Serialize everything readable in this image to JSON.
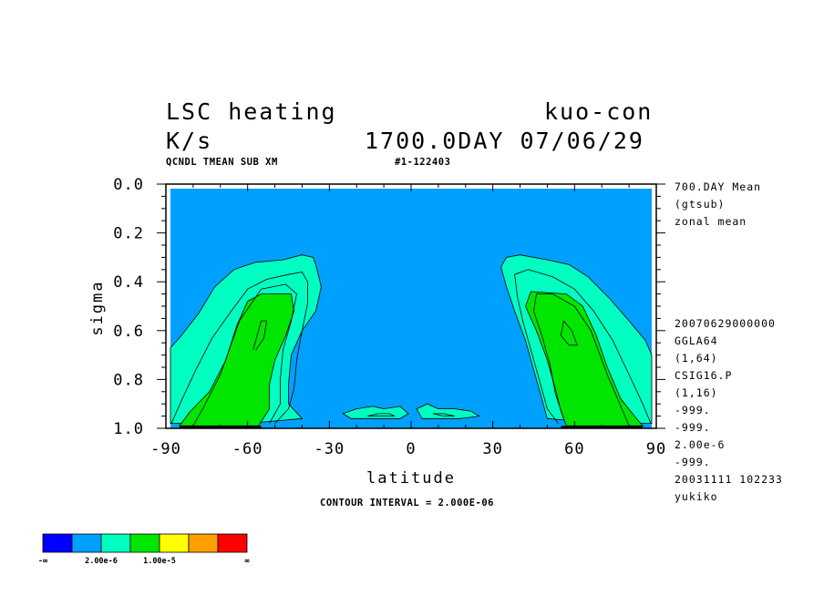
{
  "header": {
    "title_left": "LSC heating",
    "title_right": "kuo-con",
    "units": "K/s",
    "time": "1700.0DAY 07/06/29",
    "subtitle_left": "QCNDL TMEAN SUB XM",
    "subtitle_right": "#1-122403"
  },
  "side_info": {
    "lines_top": [
      "700.DAY Mean",
      "(gtsub)",
      "zonal mean"
    ],
    "lines_bottom": [
      "20070629000000",
      "GGLA64",
      "(1,64)",
      "CSIG16.P",
      "(1,16)",
      "-999.",
      "-999.",
      "2.00e-6",
      "-999.",
      "20031111 102233",
      "yukiko"
    ]
  },
  "footer": {
    "contour_interval": "CONTOUR INTERVAL = 2.000E-06"
  },
  "colorbar": {
    "colors": [
      "#0000ff",
      "#00a0ff",
      "#00ffc0",
      "#00e600",
      "#ffff00",
      "#ffa000",
      "#ff0000"
    ],
    "labels": [
      "-∞",
      "2.00e-6",
      "1.00e-5",
      "∞"
    ]
  },
  "chart_data": {
    "type": "contour",
    "xlabel": "latitude",
    "ylabel": "sigma",
    "xlim": [
      -90,
      90
    ],
    "ylim": [
      1.0,
      0.0
    ],
    "x_ticks": [
      -90,
      -60,
      -30,
      0,
      30,
      60,
      90
    ],
    "x_tick_labels": [
      "-90",
      "-60",
      "-30",
      "0",
      "30",
      "60",
      "90"
    ],
    "y_ticks": [
      0.0,
      0.2,
      0.4,
      0.6,
      0.8,
      1.0
    ],
    "y_tick_labels": [
      "0.0",
      "0.2",
      "0.4",
      "0.6",
      "0.8",
      "1.0"
    ],
    "contour_interval": 2e-06,
    "fill_colors": [
      "#00a0ff",
      "#00ffc0",
      "#00e600"
    ],
    "regions": [
      {
        "level": "2.0e-6 to 6.0e-6",
        "color": "#00ffc0",
        "points": [
          [
            -90,
            0.98
          ],
          [
            -90,
            0.67
          ],
          [
            -85,
            0.63
          ],
          [
            -78,
            0.53
          ],
          [
            -72,
            0.42
          ],
          [
            -65,
            0.35
          ],
          [
            -57,
            0.32
          ],
          [
            -47,
            0.31
          ],
          [
            -40,
            0.29
          ],
          [
            -36,
            0.3
          ],
          [
            -35,
            0.33
          ],
          [
            -33,
            0.42
          ],
          [
            -35,
            0.52
          ],
          [
            -40,
            0.6
          ],
          [
            -44,
            0.7
          ],
          [
            -45,
            0.82
          ],
          [
            -45,
            0.9
          ],
          [
            -40,
            0.96
          ],
          [
            -60,
            0.98
          ]
        ]
      },
      {
        "level": ">= 6.0e-6",
        "color": "#00e600",
        "points": [
          [
            -85,
            0.99
          ],
          [
            -81,
            0.93
          ],
          [
            -74,
            0.85
          ],
          [
            -68,
            0.72
          ],
          [
            -64,
            0.58
          ],
          [
            -60,
            0.48
          ],
          [
            -55,
            0.45
          ],
          [
            -44,
            0.45
          ],
          [
            -43,
            0.52
          ],
          [
            -46,
            0.62
          ],
          [
            -50,
            0.72
          ],
          [
            -52,
            0.82
          ],
          [
            -52,
            0.92
          ],
          [
            -56,
            0.99
          ]
        ]
      },
      {
        "level": "2.0e-6 to 6.0e-6",
        "color": "#00ffc0",
        "points": [
          [
            90,
            0.98
          ],
          [
            90,
            0.7
          ],
          [
            86,
            0.64
          ],
          [
            80,
            0.56
          ],
          [
            73,
            0.47
          ],
          [
            65,
            0.38
          ],
          [
            58,
            0.33
          ],
          [
            50,
            0.31
          ],
          [
            40,
            0.29
          ],
          [
            35,
            0.3
          ],
          [
            33,
            0.34
          ],
          [
            35,
            0.42
          ],
          [
            38,
            0.52
          ],
          [
            42,
            0.64
          ],
          [
            45,
            0.76
          ],
          [
            48,
            0.88
          ],
          [
            50,
            0.96
          ],
          [
            70,
            0.98
          ]
        ]
      },
      {
        "level": ">= 6.0e-6",
        "color": "#00e600",
        "points": [
          [
            85,
            0.99
          ],
          [
            82,
            0.95
          ],
          [
            77,
            0.88
          ],
          [
            72,
            0.75
          ],
          [
            68,
            0.62
          ],
          [
            63,
            0.5
          ],
          [
            57,
            0.45
          ],
          [
            44,
            0.44
          ],
          [
            42,
            0.5
          ],
          [
            46,
            0.6
          ],
          [
            50,
            0.72
          ],
          [
            53,
            0.84
          ],
          [
            55,
            0.93
          ],
          [
            57,
            0.99
          ]
        ]
      },
      {
        "level": "2.0e-6 to 6.0e-6",
        "color": "#00ffc0",
        "points": [
          [
            -25,
            0.94
          ],
          [
            -20,
            0.92
          ],
          [
            -14,
            0.91
          ],
          [
            -10,
            0.92
          ],
          [
            -4,
            0.91
          ],
          [
            -1,
            0.94
          ],
          [
            -4,
            0.96
          ],
          [
            -10,
            0.96
          ],
          [
            -16,
            0.96
          ],
          [
            -22,
            0.96
          ]
        ]
      },
      {
        "level": "2.0e-6 to 6.0e-6",
        "color": "#00ffc0",
        "points": [
          [
            2,
            0.92
          ],
          [
            6,
            0.9
          ],
          [
            10,
            0.92
          ],
          [
            16,
            0.92
          ],
          [
            22,
            0.93
          ],
          [
            25,
            0.95
          ],
          [
            18,
            0.96
          ],
          [
            10,
            0.96
          ],
          [
            4,
            0.96
          ]
        ]
      }
    ],
    "contour_lines": [
      {
        "points": [
          [
            -88,
            0.98
          ],
          [
            -84,
            0.88
          ],
          [
            -79,
            0.76
          ],
          [
            -73,
            0.63
          ],
          [
            -66,
            0.52
          ],
          [
            -60,
            0.43
          ],
          [
            -53,
            0.39
          ],
          [
            -45,
            0.37
          ],
          [
            -40,
            0.36
          ],
          [
            -38,
            0.4
          ],
          [
            -38,
            0.49
          ],
          [
            -40,
            0.6
          ],
          [
            -42,
            0.72
          ],
          [
            -43,
            0.84
          ],
          [
            -45,
            0.92
          ],
          [
            -50,
            0.98
          ]
        ]
      },
      {
        "points": [
          [
            -80,
            0.99
          ],
          [
            -76,
            0.91
          ],
          [
            -70,
            0.78
          ],
          [
            -63,
            0.56
          ],
          [
            -55,
            0.43
          ],
          [
            -46,
            0.41
          ],
          [
            -42,
            0.45
          ],
          [
            -44,
            0.56
          ],
          [
            -47,
            0.68
          ],
          [
            -48,
            0.8
          ],
          [
            -48,
            0.9
          ],
          [
            -52,
            0.98
          ]
        ]
      },
      {
        "points": [
          [
            -58,
            0.68
          ],
          [
            -55,
            0.56
          ],
          [
            -53,
            0.56
          ],
          [
            -54,
            0.63
          ],
          [
            -57,
            0.68
          ]
        ]
      },
      {
        "points": [
          [
            88,
            0.98
          ],
          [
            85,
            0.9
          ],
          [
            80,
            0.78
          ],
          [
            74,
            0.64
          ],
          [
            67,
            0.52
          ],
          [
            60,
            0.43
          ],
          [
            52,
            0.38
          ],
          [
            43,
            0.35
          ],
          [
            38,
            0.37
          ],
          [
            39,
            0.46
          ],
          [
            41,
            0.56
          ],
          [
            44,
            0.68
          ],
          [
            47,
            0.8
          ],
          [
            50,
            0.92
          ],
          [
            54,
            0.98
          ]
        ]
      },
      {
        "points": [
          [
            80,
            0.99
          ],
          [
            77,
            0.91
          ],
          [
            72,
            0.78
          ],
          [
            66,
            0.6
          ],
          [
            60,
            0.5
          ],
          [
            52,
            0.45
          ],
          [
            46,
            0.45
          ],
          [
            45,
            0.52
          ],
          [
            48,
            0.62
          ],
          [
            51,
            0.74
          ],
          [
            53,
            0.86
          ],
          [
            56,
            0.96
          ]
        ]
      },
      {
        "points": [
          [
            56,
            0.56
          ],
          [
            59,
            0.6
          ],
          [
            61,
            0.66
          ],
          [
            58,
            0.66
          ],
          [
            55,
            0.62
          ],
          [
            56,
            0.56
          ]
        ]
      },
      {
        "points": [
          [
            -16,
            0.95
          ],
          [
            -12,
            0.94
          ],
          [
            -8,
            0.94
          ],
          [
            -6,
            0.95
          ],
          [
            -10,
            0.95
          ],
          [
            -14,
            0.95
          ],
          [
            -16,
            0.95
          ]
        ]
      },
      {
        "points": [
          [
            8,
            0.94
          ],
          [
            12,
            0.94
          ],
          [
            16,
            0.95
          ],
          [
            12,
            0.95
          ],
          [
            8,
            0.94
          ]
        ]
      }
    ]
  }
}
